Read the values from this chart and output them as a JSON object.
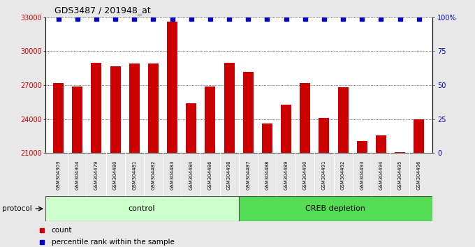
{
  "title": "GDS3487 / 201948_at",
  "samples": [
    "GSM304303",
    "GSM304304",
    "GSM304479",
    "GSM304480",
    "GSM304481",
    "GSM304482",
    "GSM304483",
    "GSM304484",
    "GSM304486",
    "GSM304498",
    "GSM304487",
    "GSM304488",
    "GSM304489",
    "GSM304490",
    "GSM304491",
    "GSM304492",
    "GSM304493",
    "GSM304494",
    "GSM304495",
    "GSM304496"
  ],
  "counts": [
    27200,
    26900,
    29000,
    28700,
    28900,
    28900,
    32600,
    25400,
    26900,
    29000,
    28200,
    23600,
    25300,
    27200,
    24100,
    26800,
    22100,
    22600,
    21100,
    24000
  ],
  "control_count": 10,
  "creb_count": 10,
  "bar_color": "#cc0000",
  "dot_color": "#0000cc",
  "control_color": "#ccffcc",
  "creb_color": "#55dd55",
  "ylim_left": [
    21000,
    33000
  ],
  "yticks_left": [
    21000,
    24000,
    27000,
    30000,
    33000
  ],
  "ylim_right": [
    0,
    100
  ],
  "yticks_right": [
    0,
    25,
    50,
    75,
    100
  ],
  "ylabel_right_labels": [
    "0",
    "25",
    "50",
    "75",
    "100%"
  ],
  "bg_color": "#e8e8e8",
  "plot_bg": "#ffffff",
  "legend_count_label": "count",
  "legend_pct_label": "percentile rank within the sample",
  "protocol_label": "protocol",
  "control_label": "control",
  "creb_label": "CREB depletion",
  "dot_marker": "s",
  "dot_size": 4,
  "sample_label_bg": "#d0d0d0"
}
